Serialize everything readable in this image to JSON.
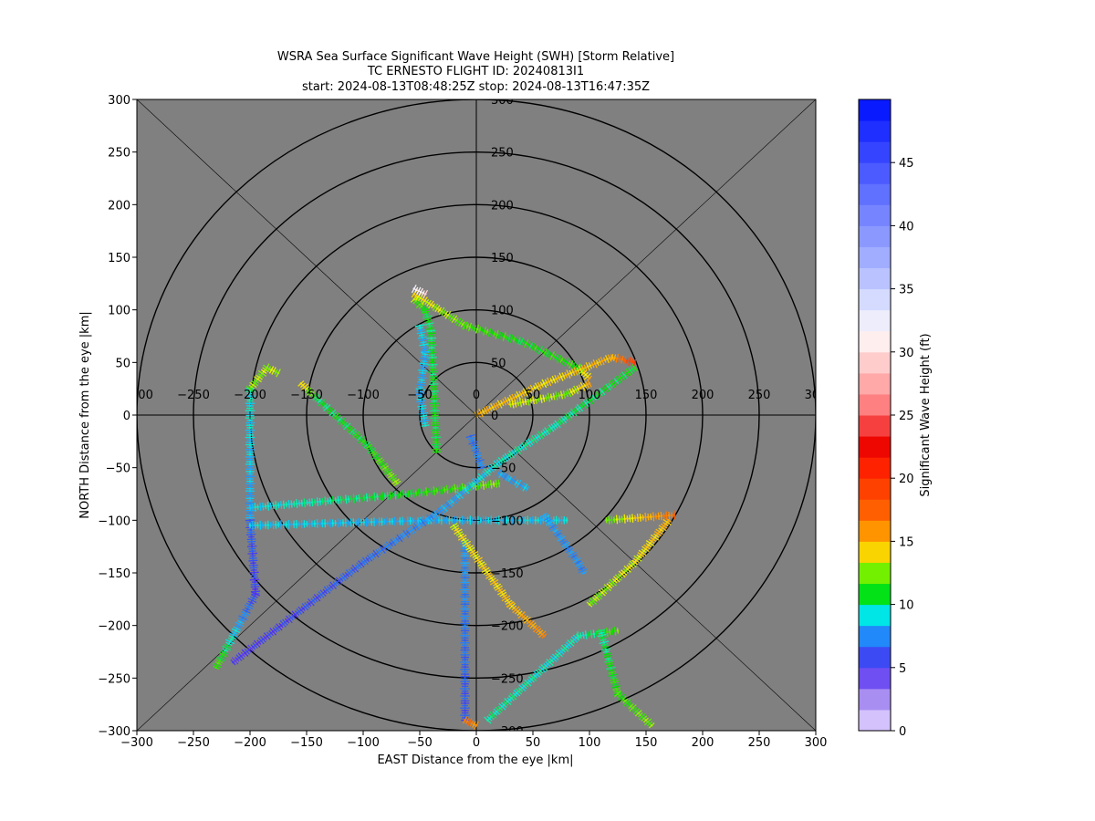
{
  "chart_data": {
    "type": "scatter",
    "title_lines": [
      "WSRA Sea Surface Significant Wave Height (SWH) [Storm Relative]",
      "TC ERNESTO FLIGHT ID: 20240813I1",
      "start: 2024-08-13T08:48:25Z    stop: 2024-08-13T16:47:35Z"
    ],
    "xlabel": "EAST Distance from the eye |km|",
    "ylabel": "NORTH Distance from the eye |km|",
    "xlim": [
      -300,
      300
    ],
    "ylim": [
      -300,
      300
    ],
    "xticks": [
      -300,
      -250,
      -200,
      -150,
      -100,
      -50,
      0,
      50,
      100,
      150,
      200,
      250,
      300
    ],
    "yticks": [
      -300,
      -250,
      -200,
      -150,
      -100,
      -50,
      0,
      50,
      100,
      150,
      200,
      250,
      300
    ],
    "range_rings_km": [
      50,
      100,
      150,
      200,
      250,
      300
    ],
    "background_color": "#808080",
    "colorbar": {
      "label": "Significant Wave Height (ft)",
      "range": [
        0,
        50
      ],
      "step": 1.67,
      "ticks": [
        0,
        5,
        10,
        15,
        20,
        25,
        30,
        35,
        40,
        45
      ]
    },
    "colormap_stops": [
      {
        "v": 0,
        "c": "#e8dcff"
      },
      {
        "v": 3,
        "c": "#9d7ef0"
      },
      {
        "v": 5,
        "c": "#4f2cf4"
      },
      {
        "v": 6.7,
        "c": "#2868f4"
      },
      {
        "v": 8.3,
        "c": "#1ca8ff"
      },
      {
        "v": 9.2,
        "c": "#00e6e6"
      },
      {
        "v": 10,
        "c": "#10f0a0"
      },
      {
        "v": 11,
        "c": "#00e000"
      },
      {
        "v": 12.5,
        "c": "#70f000"
      },
      {
        "v": 13.5,
        "c": "#f4f400"
      },
      {
        "v": 15,
        "c": "#ffb000"
      },
      {
        "v": 17.5,
        "c": "#ff6000"
      },
      {
        "v": 21,
        "c": "#ff2000"
      },
      {
        "v": 23,
        "c": "#e80000"
      },
      {
        "v": 25,
        "c": "#ff6a6a"
      },
      {
        "v": 28,
        "c": "#ffb4b4"
      },
      {
        "v": 31,
        "c": "#fff0f0"
      },
      {
        "v": 33,
        "c": "#e8ecff"
      },
      {
        "v": 37,
        "c": "#a8b4ff"
      },
      {
        "v": 42,
        "c": "#6878ff"
      },
      {
        "v": 50,
        "c": "#0010ff"
      }
    ],
    "tracks": [
      {
        "points": [
          [
            -200,
            25
          ],
          [
            -200,
            -100
          ]
        ],
        "swh": [
          9.5,
          8.0
        ]
      },
      {
        "points": [
          [
            -200,
            -100
          ],
          [
            -195,
            -170
          ],
          [
            -230,
            -240
          ]
        ],
        "swh": [
          6.5,
          5.5,
          12.0
        ]
      },
      {
        "points": [
          [
            -200,
            25
          ],
          [
            -185,
            45
          ],
          [
            -175,
            40
          ]
        ],
        "swh": [
          12.5,
          13.0
        ]
      },
      {
        "points": [
          [
            -155,
            30
          ],
          [
            -140,
            15
          ],
          [
            -95,
            -30
          ],
          [
            -70,
            -65
          ]
        ],
        "swh": [
          14.5,
          10.5,
          11.0,
          12.5
        ]
      },
      {
        "points": [
          [
            -200,
            -88
          ],
          [
            -60,
            -75
          ],
          [
            20,
            -65
          ]
        ],
        "swh": [
          9.0,
          11.0,
          12.5
        ]
      },
      {
        "points": [
          [
            -200,
            -105
          ],
          [
            -40,
            -100
          ],
          [
            80,
            -100
          ]
        ],
        "swh": [
          9.0,
          8.5,
          9.0
        ]
      },
      {
        "points": [
          [
            -215,
            -235
          ],
          [
            -100,
            -140
          ],
          [
            -30,
            -90
          ],
          [
            20,
            -45
          ],
          [
            70,
            -10
          ],
          [
            140,
            45
          ]
        ],
        "swh": [
          5.0,
          6.5,
          8.0,
          9.5,
          10.0,
          11.0
        ]
      },
      {
        "points": [
          [
            -55,
            110
          ],
          [
            -45,
            100
          ],
          [
            -40,
            80
          ],
          [
            -35,
            -35
          ]
        ],
        "swh": [
          12.5,
          11.0,
          10.5,
          11.0
        ]
      },
      {
        "points": [
          [
            -50,
            85
          ],
          [
            -45,
            60
          ],
          [
            -50,
            20
          ],
          [
            -45,
            -10
          ]
        ],
        "swh": [
          9.0,
          8.5,
          8.5,
          9.0
        ]
      },
      {
        "points": [
          [
            -55,
            115
          ],
          [
            -10,
            85
          ],
          [
            40,
            70
          ],
          [
            90,
            45
          ],
          [
            100,
            35
          ]
        ],
        "swh": [
          14.0,
          12.0,
          11.0,
          11.5,
          15.0
        ]
      },
      {
        "points": [
          [
            0,
            0
          ],
          [
            60,
            30
          ],
          [
            120,
            55
          ],
          [
            140,
            50
          ]
        ],
        "swh": [
          15.0,
          14.0,
          15.0,
          20.0
        ]
      },
      {
        "points": [
          [
            30,
            10
          ],
          [
            80,
            20
          ],
          [
            100,
            30
          ]
        ],
        "swh": [
          13.5,
          12.5,
          15.0
        ]
      },
      {
        "points": [
          [
            -10,
            -120
          ],
          [
            -10,
            -290
          ]
        ],
        "swh": [
          8.0,
          6.0
        ]
      },
      {
        "points": [
          [
            -20,
            -105
          ],
          [
            30,
            -180
          ],
          [
            60,
            -210
          ]
        ],
        "swh": [
          13.5,
          14.5,
          16.0
        ]
      },
      {
        "points": [
          [
            10,
            -290
          ],
          [
            60,
            -240
          ],
          [
            90,
            -210
          ],
          [
            125,
            -205
          ]
        ],
        "swh": [
          10.0,
          9.5,
          9.5,
          12.0
        ]
      },
      {
        "points": [
          [
            110,
            -205
          ],
          [
            125,
            -265
          ],
          [
            155,
            -295
          ]
        ],
        "swh": [
          10.0,
          11.5,
          12.5
        ]
      },
      {
        "points": [
          [
            100,
            -180
          ],
          [
            140,
            -140
          ],
          [
            170,
            -100
          ]
        ],
        "swh": [
          12.5,
          13.5,
          15.0
        ]
      },
      {
        "points": [
          [
            115,
            -100
          ],
          [
            175,
            -95
          ]
        ],
        "swh": [
          12.0,
          17.0
        ]
      },
      {
        "points": [
          [
            60,
            -95
          ],
          [
            90,
            -140
          ],
          [
            95,
            -150
          ]
        ],
        "swh": [
          8.0,
          7.5
        ]
      },
      {
        "points": [
          [
            20,
            -55
          ],
          [
            45,
            -70
          ]
        ],
        "swh": [
          8.0,
          8.5
        ]
      },
      {
        "points": [
          [
            -5,
            -20
          ],
          [
            5,
            -50
          ]
        ],
        "swh": [
          7.0,
          7.5
        ]
      },
      {
        "points": [
          [
            -45,
            115
          ],
          [
            -55,
            120
          ]
        ],
        "swh": [
          30.0,
          32.0
        ]
      },
      {
        "points": [
          [
            -10,
            -290
          ],
          [
            0,
            -295
          ]
        ],
        "swh": [
          17.0,
          16.0
        ]
      }
    ]
  }
}
